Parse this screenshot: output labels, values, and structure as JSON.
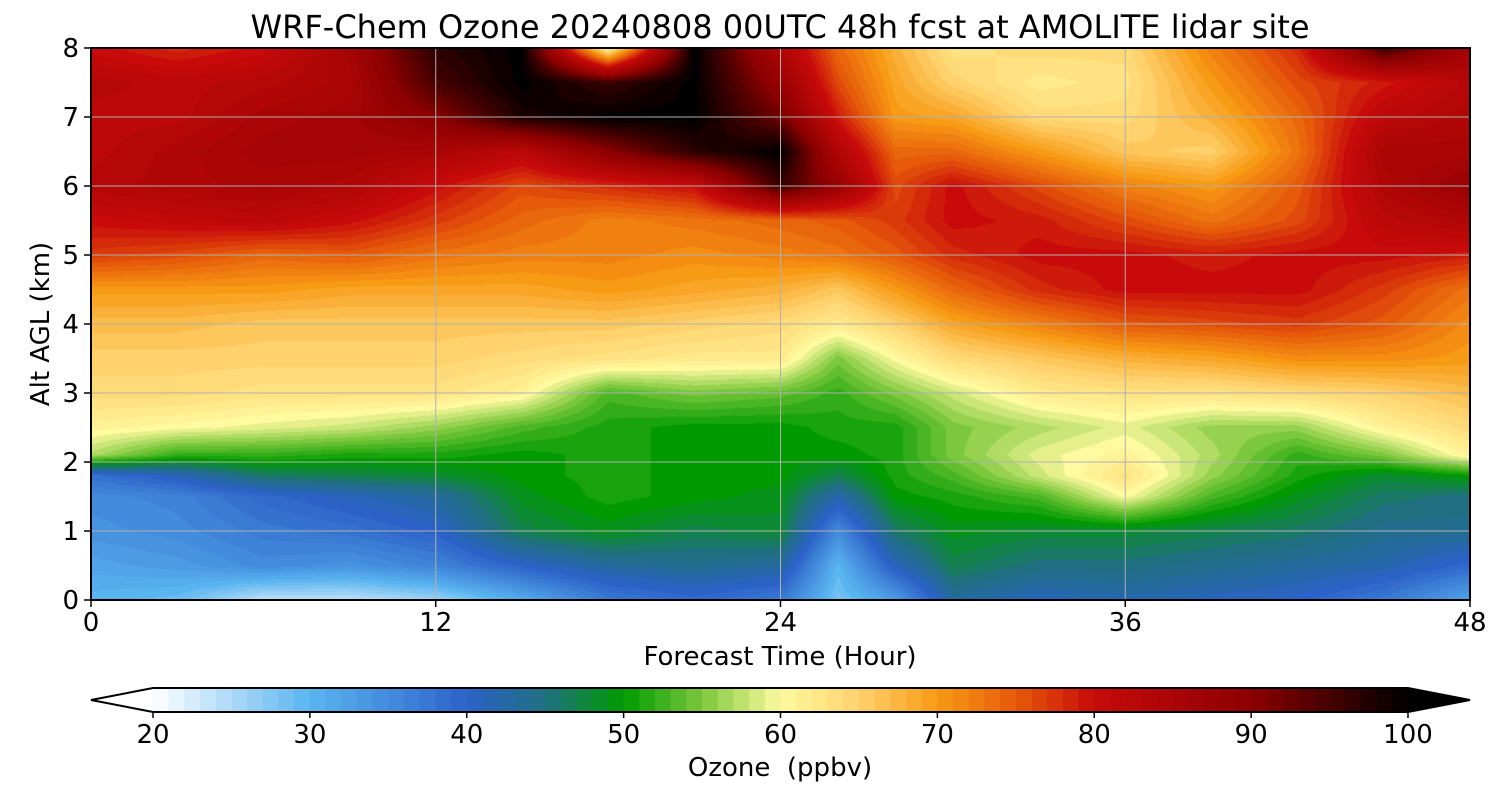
{
  "chart_data": {
    "type": "heatmap",
    "title": "WRF-Chem Ozone  20240808 00UTC 48h fcst at AMOLITE lidar site",
    "xlabel": "Forecast Time (Hour)",
    "ylabel": "Alt AGL (km)",
    "xlim": [
      0,
      48
    ],
    "ylim": [
      0,
      8
    ],
    "x_ticks": [
      0,
      12,
      24,
      36,
      48
    ],
    "y_ticks": [
      0,
      1,
      2,
      3,
      4,
      5,
      6,
      7,
      8
    ],
    "grid": true,
    "colorbar": {
      "label": "Ozone  (ppbv)",
      "min": 20,
      "max": 100,
      "ticks": [
        20,
        30,
        40,
        50,
        60,
        70,
        80,
        90,
        100
      ],
      "extend": "both",
      "stops": [
        {
          "v": 20,
          "c": "#ffffff"
        },
        {
          "v": 30,
          "c": "#5ab4f0"
        },
        {
          "v": 40,
          "c": "#2c62c8"
        },
        {
          "v": 45,
          "c": "#1f6f80"
        },
        {
          "v": 50,
          "c": "#009a00"
        },
        {
          "v": 55,
          "c": "#7cc83c"
        },
        {
          "v": 60,
          "c": "#fffaa0"
        },
        {
          "v": 65,
          "c": "#ffd26e"
        },
        {
          "v": 70,
          "c": "#f79a14"
        },
        {
          "v": 75,
          "c": "#e65a0a"
        },
        {
          "v": 80,
          "c": "#c80a0a"
        },
        {
          "v": 90,
          "c": "#8c0000"
        },
        {
          "v": 100,
          "c": "#000000"
        }
      ]
    },
    "x": [
      0,
      3,
      6,
      9,
      12,
      15,
      18,
      21,
      24,
      26,
      28,
      30,
      33,
      36,
      39,
      42,
      45,
      48
    ],
    "y": [
      0,
      0.5,
      1,
      1.5,
      1.8,
      2.1,
      2.5,
      3,
      3.5,
      4,
      4.5,
      5,
      5.5,
      6,
      6.5,
      7,
      7.5,
      8
    ],
    "z": [
      [
        30,
        29,
        24,
        24,
        26,
        31,
        37,
        39,
        37,
        28,
        33,
        43,
        41,
        42,
        41,
        40,
        37,
        32
      ],
      [
        32,
        33,
        35,
        34,
        36,
        40,
        43,
        44,
        43,
        30,
        41,
        47,
        45,
        45,
        44,
        43,
        42,
        39
      ],
      [
        34,
        35,
        37,
        38,
        40,
        47,
        49,
        47,
        48,
        35,
        46,
        49,
        48,
        48,
        47,
        46,
        44,
        44
      ],
      [
        35,
        36,
        39,
        41,
        43,
        49,
        51,
        50,
        49,
        42,
        50,
        51,
        53,
        60,
        53,
        49,
        46,
        45
      ],
      [
        38,
        41,
        46,
        47,
        48,
        50,
        51,
        50,
        50,
        47,
        51,
        53,
        58,
        63,
        56,
        51,
        48,
        50
      ],
      [
        57,
        52,
        52,
        51,
        51,
        50,
        51,
        50,
        50,
        50,
        51,
        55,
        59,
        61,
        57,
        52,
        55,
        61
      ],
      [
        61,
        60,
        59,
        58,
        56,
        53,
        51,
        50,
        50,
        51,
        51,
        55,
        57,
        59,
        56,
        56,
        61,
        64
      ],
      [
        64,
        64,
        63,
        63,
        63,
        61,
        53,
        55,
        54,
        52,
        55,
        58,
        62,
        63,
        63,
        64,
        65,
        67
      ],
      [
        65,
        65,
        65,
        65,
        65,
        64,
        63,
        62,
        62,
        55,
        60,
        64,
        66,
        68,
        69,
        71,
        71,
        70
      ],
      [
        67,
        67,
        66,
        66,
        66,
        66,
        66,
        65,
        64,
        62,
        65,
        69,
        72,
        75,
        76,
        77,
        75,
        71
      ],
      [
        70,
        70,
        70,
        69,
        69,
        69,
        70,
        69,
        68,
        66,
        70,
        74,
        78,
        80,
        80,
        80,
        77,
        73
      ],
      [
        77,
        76,
        74,
        75,
        73,
        72,
        72,
        71,
        72,
        73,
        75,
        78,
        80,
        80,
        79,
        80,
        80,
        79
      ],
      [
        80,
        81,
        82,
        80,
        77,
        74,
        72,
        73,
        74,
        75,
        77,
        80,
        79,
        76,
        73,
        76,
        82,
        84
      ],
      [
        83,
        84,
        85,
        84,
        80,
        76,
        78,
        80,
        96,
        88,
        76,
        80,
        76,
        72,
        70,
        75,
        84,
        88
      ],
      [
        82,
        84,
        86,
        86,
        85,
        82,
        90,
        97,
        100,
        84,
        74,
        74,
        70,
        66,
        65,
        73,
        85,
        85
      ],
      [
        82,
        82,
        85,
        86,
        90,
        98,
        100,
        100,
        92,
        79,
        70,
        69,
        64,
        64,
        68,
        74,
        82,
        84
      ],
      [
        83,
        82,
        83,
        85,
        95,
        100,
        96,
        100,
        88,
        76,
        69,
        65,
        62,
        63,
        70,
        76,
        79,
        83
      ],
      [
        80,
        78,
        80,
        86,
        97,
        100,
        60,
        100,
        84,
        74,
        68,
        63,
        64,
        64,
        72,
        78,
        96,
        86
      ]
    ]
  }
}
